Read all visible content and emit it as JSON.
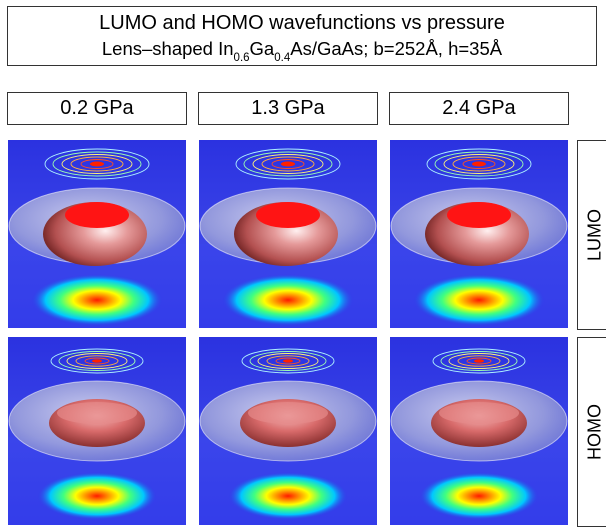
{
  "title": {
    "line1": "LUMO and HOMO wavefunctions vs pressure",
    "line2_prefix": "Lens–shaped In",
    "line2_sub1": "0.6",
    "line2_mid": "Ga",
    "line2_sub2": "0.4",
    "line2_suffix": "As/GaAs; b=252Å, h=35Å"
  },
  "columns": [
    "0.2 GPa",
    "1.3 GPa",
    "2.4 GPa"
  ],
  "rows": [
    "LUMO",
    "HOMO"
  ],
  "colors": {
    "background_blue": "#2f37e6",
    "lumo_disk": "#ff1f1f",
    "homo_disk": "#e06a6a",
    "lens_glass": "#c9c9d6"
  }
}
